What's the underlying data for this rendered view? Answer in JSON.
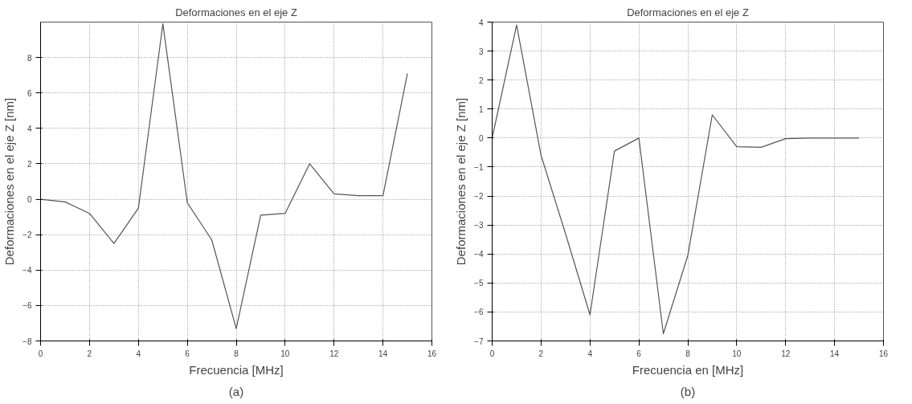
{
  "chart_data": [
    {
      "type": "line",
      "title": "Deformaciones en el eje Z",
      "xlabel": "Frecuencia [MHz]",
      "ylabel": "Deformaciones en el eje Z [nm]",
      "annotations": [
        "(a)"
      ],
      "x": [
        0,
        1,
        2,
        3,
        4,
        5,
        6,
        7,
        8,
        9,
        10,
        11,
        12,
        13,
        14,
        15
      ],
      "series": [
        {
          "color": "#555555",
          "values": [
            0,
            -0.15,
            -0.8,
            -2.5,
            -0.5,
            9.9,
            -0.2,
            -2.3,
            -7.3,
            -0.9,
            -0.8,
            2.0,
            0.3,
            0.2,
            0.2,
            7.1
          ]
        }
      ],
      "xlim": [
        0,
        16
      ],
      "xticks": [
        0,
        2,
        4,
        6,
        8,
        10,
        12,
        14,
        16
      ],
      "ylim": [
        -8,
        10
      ],
      "yticks": [
        -8,
        -6,
        -4,
        -2,
        0,
        2,
        4,
        6,
        8
      ],
      "grid": true,
      "marker": "none",
      "line_style": "solid"
    },
    {
      "type": "line",
      "title": "Deformaciones en el eje Z",
      "xlabel": "Frecuencia en [MHz]",
      "ylabel": "Deformaciones en el eje Z [nm]",
      "annotations": [
        "(b)"
      ],
      "x": [
        0,
        1,
        2,
        3,
        4,
        5,
        6,
        7,
        8,
        9,
        10,
        11,
        12,
        13,
        14,
        15
      ],
      "series": [
        {
          "color": "#555555",
          "values": [
            0,
            3.9,
            -0.6,
            -3.3,
            -6.1,
            -0.45,
            0,
            -6.75,
            -4.05,
            0.8,
            -0.3,
            -0.32,
            -0.02,
            0,
            0,
            0
          ]
        }
      ],
      "xlim": [
        0,
        16
      ],
      "xticks": [
        0,
        2,
        4,
        6,
        8,
        10,
        12,
        14,
        16
      ],
      "ylim": [
        -7,
        4
      ],
      "yticks": [
        -7,
        -6,
        -5,
        -4,
        -3,
        -2,
        -1,
        0,
        1,
        2,
        3,
        4
      ],
      "grid": true,
      "marker": "none",
      "line_style": "solid"
    }
  ]
}
